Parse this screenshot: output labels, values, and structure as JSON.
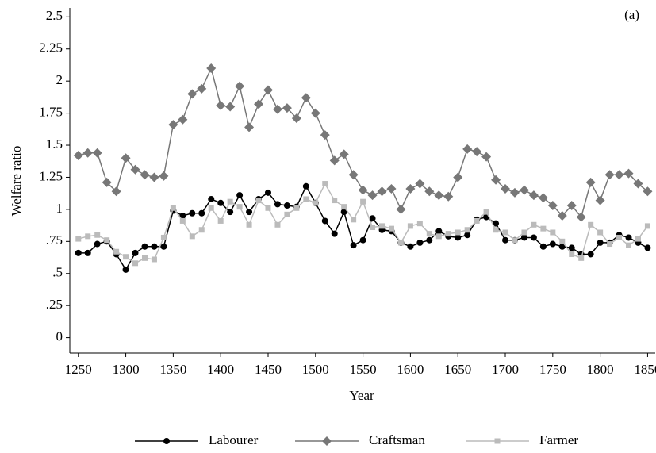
{
  "chart_data": {
    "type": "line",
    "annotation": "(a)",
    "xlabel": "Year",
    "ylabel": "Welfare ratio",
    "x": [
      1250,
      1260,
      1270,
      1280,
      1290,
      1300,
      1310,
      1320,
      1330,
      1340,
      1350,
      1360,
      1370,
      1380,
      1390,
      1400,
      1410,
      1420,
      1430,
      1440,
      1450,
      1460,
      1470,
      1480,
      1490,
      1500,
      1510,
      1520,
      1530,
      1540,
      1550,
      1560,
      1570,
      1580,
      1590,
      1600,
      1610,
      1620,
      1630,
      1640,
      1650,
      1660,
      1670,
      1680,
      1690,
      1700,
      1710,
      1720,
      1730,
      1740,
      1750,
      1760,
      1770,
      1780,
      1790,
      1800,
      1810,
      1820,
      1830,
      1840,
      1850
    ],
    "series": [
      {
        "name": "Labourer",
        "color": "#000000",
        "marker": "circle",
        "values": [
          0.66,
          0.66,
          0.73,
          0.75,
          0.65,
          0.53,
          0.66,
          0.71,
          0.71,
          0.71,
          0.99,
          0.95,
          0.97,
          0.97,
          1.08,
          1.05,
          0.98,
          1.11,
          0.98,
          1.08,
          1.13,
          1.04,
          1.03,
          1.02,
          1.18,
          1.05,
          0.91,
          0.81,
          0.98,
          0.72,
          0.76,
          0.93,
          0.84,
          0.83,
          0.74,
          0.71,
          0.74,
          0.76,
          0.83,
          0.79,
          0.78,
          0.8,
          0.92,
          0.94,
          0.89,
          0.76,
          0.76,
          0.78,
          0.78,
          0.71,
          0.73,
          0.71,
          0.7,
          0.65,
          0.65,
          0.74,
          0.74,
          0.8,
          0.78,
          0.74,
          0.7
        ]
      },
      {
        "name": "Craftsman",
        "color": "#777777",
        "marker": "diamond",
        "values": [
          1.42,
          1.44,
          1.44,
          1.21,
          1.14,
          1.4,
          1.31,
          1.27,
          1.25,
          1.26,
          1.66,
          1.7,
          1.9,
          1.94,
          2.1,
          1.81,
          1.8,
          1.96,
          1.64,
          1.82,
          1.93,
          1.78,
          1.79,
          1.71,
          1.87,
          1.75,
          1.58,
          1.38,
          1.43,
          1.27,
          1.15,
          1.11,
          1.14,
          1.16,
          1.0,
          1.16,
          1.2,
          1.14,
          1.11,
          1.1,
          1.25,
          1.47,
          1.45,
          1.41,
          1.23,
          1.16,
          1.13,
          1.15,
          1.11,
          1.09,
          1.03,
          0.95,
          1.03,
          0.94,
          1.21,
          1.07,
          1.27,
          1.27,
          1.28,
          1.2,
          1.14
        ]
      },
      {
        "name": "Farmer",
        "color": "#bbbbbb",
        "marker": "square",
        "values": [
          0.77,
          0.79,
          0.8,
          0.76,
          0.67,
          0.63,
          0.58,
          0.62,
          0.61,
          0.78,
          1.01,
          0.91,
          0.79,
          0.84,
          1.01,
          0.91,
          1.06,
          1.02,
          0.88,
          1.07,
          1.01,
          0.88,
          0.96,
          1.01,
          1.08,
          1.05,
          1.2,
          1.07,
          1.02,
          0.92,
          1.06,
          0.86,
          0.87,
          0.85,
          0.74,
          0.87,
          0.89,
          0.81,
          0.79,
          0.81,
          0.82,
          0.84,
          0.91,
          0.98,
          0.84,
          0.82,
          0.76,
          0.82,
          0.88,
          0.85,
          0.82,
          0.75,
          0.65,
          0.62,
          0.88,
          0.82,
          0.73,
          0.78,
          0.72,
          0.77,
          0.87
        ]
      }
    ],
    "xlim": [
      1241,
      1858
    ],
    "xticks": [
      1250,
      1300,
      1350,
      1400,
      1450,
      1500,
      1550,
      1600,
      1650,
      1700,
      1750,
      1800,
      1850
    ],
    "ylim": [
      -0.12,
      2.57
    ],
    "yticks": [
      0,
      {
        "value": 0.25,
        "label": ".25"
      },
      {
        "value": 0.5,
        "label": ".5"
      },
      {
        "value": 0.75,
        "label": ".75"
      },
      1,
      1.25,
      1.5,
      1.75,
      2,
      2.25,
      2.5
    ],
    "grid": false,
    "legend": "bottom"
  }
}
